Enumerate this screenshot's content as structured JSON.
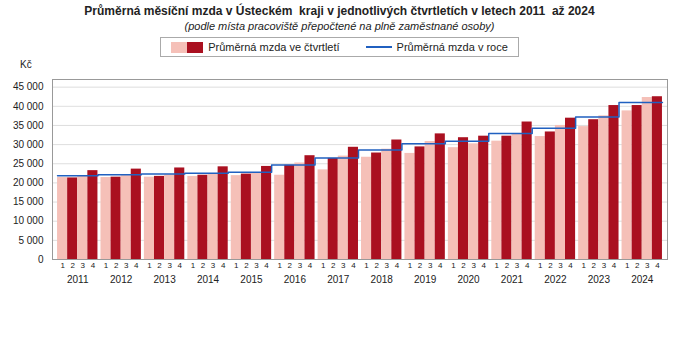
{
  "chart_data": {
    "type": "bar",
    "title": "Průměrná měsíční mzda v Ústeckém  kraji v jednotlivých čtvrtletích v letech 2011  až 2024",
    "subtitle": "(podle místa pracoviště přepočtené na plně zaměstnané osoby)",
    "ylabel": "Kč",
    "categories": [
      2011,
      2012,
      2013,
      2014,
      2015,
      2016,
      2017,
      2018,
      2019,
      2020,
      2021,
      2022,
      2023,
      2024
    ],
    "quarters": [
      "1",
      "2",
      "3",
      "4"
    ],
    "series": [
      {
        "name": "Průměrná mzda ve čtvrtletí",
        "type": "bar",
        "colors": [
          "#f5c0b8",
          "#aa1020",
          "#f5c0b8",
          "#aa1020"
        ],
        "values": [
          [
            21400,
            21300,
            21700,
            23200
          ],
          [
            21400,
            21500,
            21900,
            23600
          ],
          [
            21500,
            21700,
            22100,
            23900
          ],
          [
            21700,
            22000,
            22300,
            24200
          ],
          [
            21900,
            22300,
            22700,
            24300
          ],
          [
            22000,
            24600,
            25200,
            27100
          ],
          [
            23400,
            26400,
            27000,
            29300
          ],
          [
            26700,
            27800,
            28800,
            31200
          ],
          [
            27700,
            29400,
            30800,
            32800
          ],
          [
            29200,
            31800,
            30200,
            32200
          ],
          [
            30900,
            32200,
            32700,
            35900
          ],
          [
            32100,
            33300,
            35000,
            36900
          ],
          [
            34700,
            36500,
            37500,
            40200
          ],
          [
            38800,
            40200,
            42300,
            42500
          ]
        ]
      },
      {
        "name": "Průměrná mzda v roce",
        "type": "line",
        "color": "#2060c0",
        "values": [
          21900,
          22100,
          22300,
          22500,
          22800,
          24700,
          26500,
          28600,
          30200,
          30900,
          32900,
          34300,
          37200,
          41000
        ]
      }
    ],
    "ylim": [
      0,
      47000
    ],
    "yticks": [
      0,
      {
        "value": 5000,
        "label": "5 000"
      },
      {
        "value": 10000,
        "label": "10 000"
      },
      {
        "value": 15000,
        "label": "15 000"
      },
      {
        "value": 20000,
        "label": "20 000"
      },
      {
        "value": 25000,
        "label": "25 000"
      },
      {
        "value": 30000,
        "label": "30 000"
      },
      {
        "value": 35000,
        "label": "35 000"
      },
      {
        "value": 40000,
        "label": "40 000"
      },
      {
        "value": 45000,
        "label": "45 000"
      }
    ],
    "grid": true,
    "legend": "top"
  }
}
